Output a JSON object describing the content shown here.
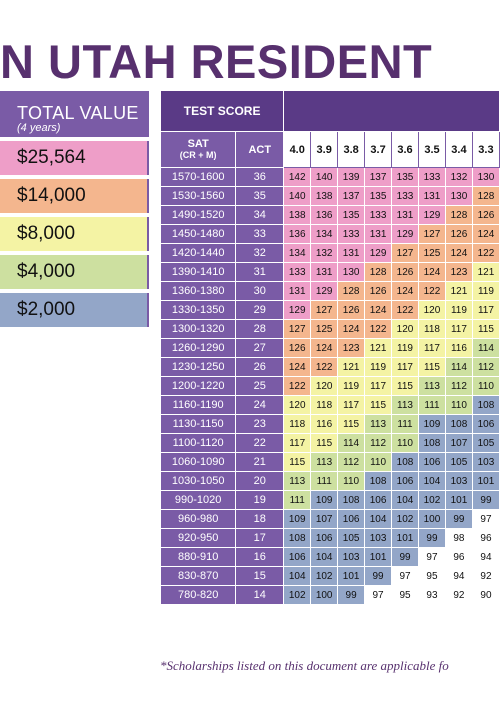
{
  "title": "N UTAH RESIDENT",
  "total_value": {
    "header": "TOTAL VALUE",
    "subheader": "(4 years)",
    "tiers": [
      {
        "label": "$25,564",
        "color": "#ee9ec8"
      },
      {
        "label": "$14,000",
        "color": "#f4b68e"
      },
      {
        "label": "$8,000",
        "color": "#f4f3a4"
      },
      {
        "label": "$4,000",
        "color": "#cde0a0"
      },
      {
        "label": "$2,000",
        "color": "#93a6c8"
      }
    ]
  },
  "grid": {
    "test_score_header": "TEST SCORE",
    "sat_header": "SAT",
    "sat_sub": "(CR + M)",
    "act_header": "ACT",
    "gpa": [
      "4.0",
      "3.9",
      "3.8",
      "3.7",
      "3.6",
      "3.5",
      "3.4",
      "3.3"
    ],
    "rows": [
      {
        "sat": "1570-1600",
        "act": "36",
        "v": [
          "142",
          "140",
          "139",
          "137",
          "135",
          "133",
          "132",
          "130"
        ]
      },
      {
        "sat": "1530-1560",
        "act": "35",
        "v": [
          "140",
          "138",
          "137",
          "135",
          "133",
          "131",
          "130",
          "128"
        ]
      },
      {
        "sat": "1490-1520",
        "act": "34",
        "v": [
          "138",
          "136",
          "135",
          "133",
          "131",
          "129",
          "128",
          "126"
        ]
      },
      {
        "sat": "1450-1480",
        "act": "33",
        "v": [
          "136",
          "134",
          "133",
          "131",
          "129",
          "127",
          "126",
          "124"
        ]
      },
      {
        "sat": "1420-1440",
        "act": "32",
        "v": [
          "134",
          "132",
          "131",
          "129",
          "127",
          "125",
          "124",
          "122"
        ]
      },
      {
        "sat": "1390-1410",
        "act": "31",
        "v": [
          "133",
          "131",
          "130",
          "128",
          "126",
          "124",
          "123",
          "121"
        ]
      },
      {
        "sat": "1360-1380",
        "act": "30",
        "v": [
          "131",
          "129",
          "128",
          "126",
          "124",
          "122",
          "121",
          "119"
        ]
      },
      {
        "sat": "1330-1350",
        "act": "29",
        "v": [
          "129",
          "127",
          "126",
          "124",
          "122",
          "120",
          "119",
          "117"
        ]
      },
      {
        "sat": "1300-1320",
        "act": "28",
        "v": [
          "127",
          "125",
          "124",
          "122",
          "120",
          "118",
          "117",
          "115"
        ]
      },
      {
        "sat": "1260-1290",
        "act": "27",
        "v": [
          "126",
          "124",
          "123",
          "121",
          "119",
          "117",
          "116",
          "114"
        ]
      },
      {
        "sat": "1230-1250",
        "act": "26",
        "v": [
          "124",
          "122",
          "121",
          "119",
          "117",
          "115",
          "114",
          "112"
        ]
      },
      {
        "sat": "1200-1220",
        "act": "25",
        "v": [
          "122",
          "120",
          "119",
          "117",
          "115",
          "113",
          "112",
          "110"
        ]
      },
      {
        "sat": "1160-1190",
        "act": "24",
        "v": [
          "120",
          "118",
          "117",
          "115",
          "113",
          "111",
          "110",
          "108"
        ]
      },
      {
        "sat": "1130-1150",
        "act": "23",
        "v": [
          "118",
          "116",
          "115",
          "113",
          "111",
          "109",
          "108",
          "106"
        ]
      },
      {
        "sat": "1100-1120",
        "act": "22",
        "v": [
          "117",
          "115",
          "114",
          "112",
          "110",
          "108",
          "107",
          "105"
        ]
      },
      {
        "sat": "1060-1090",
        "act": "21",
        "v": [
          "115",
          "113",
          "112",
          "110",
          "108",
          "106",
          "105",
          "103"
        ]
      },
      {
        "sat": "1030-1050",
        "act": "20",
        "v": [
          "113",
          "111",
          "110",
          "108",
          "106",
          "104",
          "103",
          "101"
        ]
      },
      {
        "sat": "990-1020",
        "act": "19",
        "v": [
          "111",
          "109",
          "108",
          "106",
          "104",
          "102",
          "101",
          "99"
        ]
      },
      {
        "sat": "960-980",
        "act": "18",
        "v": [
          "109",
          "107",
          "106",
          "104",
          "102",
          "100",
          "99",
          "97"
        ]
      },
      {
        "sat": "920-950",
        "act": "17",
        "v": [
          "108",
          "106",
          "105",
          "103",
          "101",
          "99",
          "98",
          "96"
        ]
      },
      {
        "sat": "880-910",
        "act": "16",
        "v": [
          "106",
          "104",
          "103",
          "101",
          "99",
          "97",
          "96",
          "94"
        ]
      },
      {
        "sat": "830-870",
        "act": "15",
        "v": [
          "104",
          "102",
          "101",
          "99",
          "97",
          "95",
          "94",
          "92"
        ]
      },
      {
        "sat": "780-820",
        "act": "14",
        "v": [
          "102",
          "100",
          "99",
          "97",
          "95",
          "93",
          "92",
          "90"
        ]
      }
    ]
  },
  "footnote": "*Scholarships listed on this document are applicable fo"
}
